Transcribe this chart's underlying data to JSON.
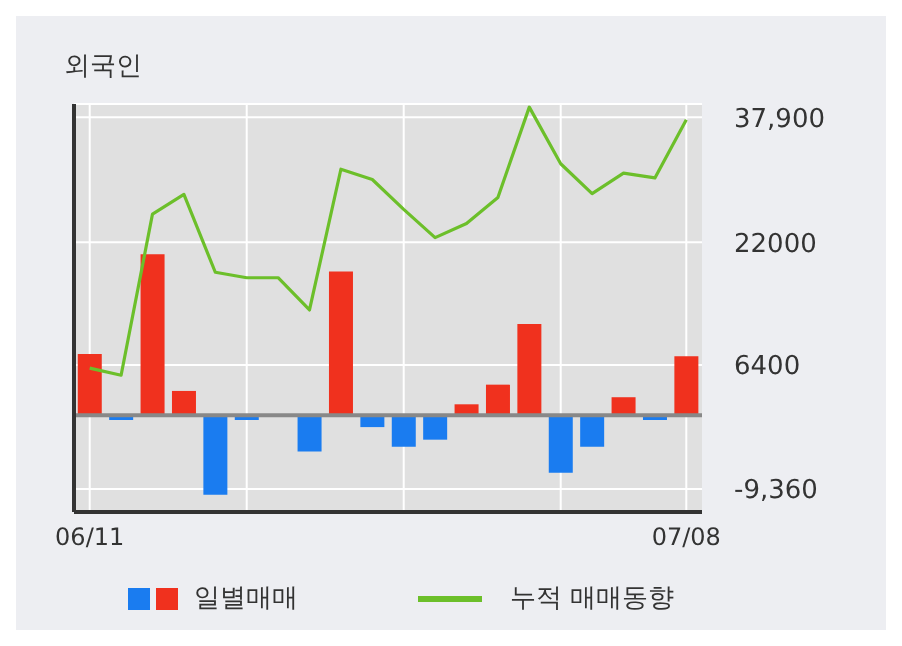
{
  "chart_data": {
    "type": "bar",
    "title": "외국인",
    "categories": [
      "06/11",
      null,
      null,
      null,
      null,
      null,
      null,
      null,
      null,
      null,
      null,
      null,
      null,
      null,
      null,
      null,
      null,
      null,
      null,
      "07/08"
    ],
    "series": [
      {
        "name": "일별매매",
        "colors": [
          "#f0311e",
          "#1a7cf0",
          "#f0311e",
          "#f0311e",
          "#1a7cf0",
          "#1a7cf0",
          "#f0311e",
          "#1a7cf0",
          "#f0311e",
          "#1a7cf0",
          "#1a7cf0",
          "#1a7cf0",
          "#f0311e",
          "#f0311e",
          "#f0311e",
          "#1a7cf0",
          "#1a7cf0",
          "#f0311e",
          "#1a7cf0",
          "#f0311e"
        ],
        "values": [
          7800,
          -600,
          20500,
          3100,
          -10100,
          -600,
          0,
          -4600,
          18300,
          -1500,
          -4000,
          -3100,
          1400,
          3900,
          11600,
          -7300,
          -4000,
          2300,
          -600,
          7500
        ]
      },
      {
        "name": "누적 매매동향",
        "type": "line",
        "color": "#6cbf2a",
        "values": [
          6000,
          5100,
          25600,
          28100,
          18200,
          17500,
          17500,
          13400,
          31300,
          30000,
          26200,
          22600,
          24400,
          27700,
          39200,
          32000,
          28200,
          30800,
          30200,
          37600
        ]
      }
    ],
    "ylim": [
      -12300,
      39600
    ],
    "yticks": [
      {
        "value": 37900,
        "label": "37,900"
      },
      22000,
      6400,
      {
        "value": -9360,
        "label": "-9,360"
      }
    ],
    "ref_lines": [
      {
        "axis": "y",
        "value": 0,
        "color": "#888888"
      }
    ],
    "grid": true,
    "legend": "bottom",
    "marker": "none"
  }
}
